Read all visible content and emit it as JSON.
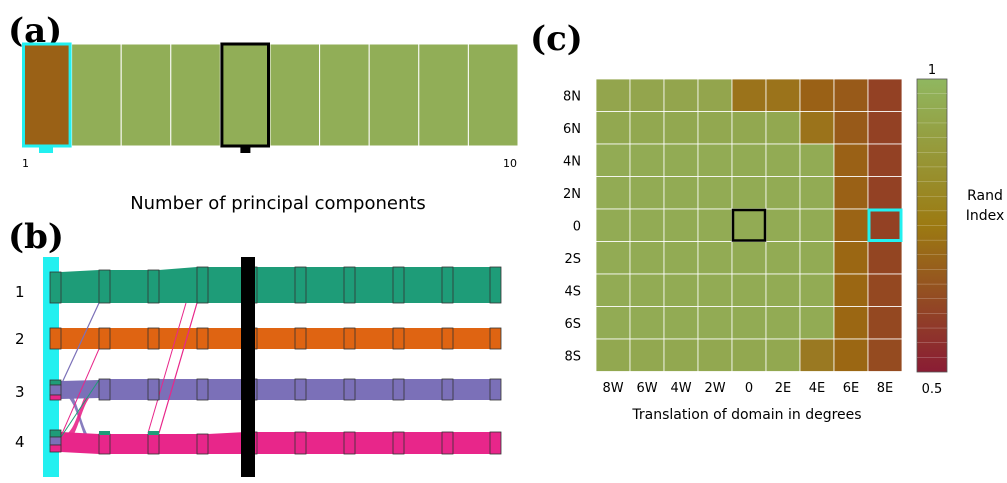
{
  "colors": {
    "cell_high": "#8fb55f",
    "cyan": "#22f0f0",
    "black": "#000000",
    "cluster_1": "#1e9c78",
    "cluster_2": "#df6412",
    "cluster_3": "#7b70b8",
    "cluster_4": "#e8268a",
    "rand_low": "#8a1c34",
    "rand_mid": "#9c6a12",
    "rand_high": "#90b760"
  },
  "chart_data": [
    {
      "panel": "a",
      "type": "heatmap",
      "panel_label": "(a)",
      "xlabel": "Number of principal components",
      "tick_labels": [
        "1",
        "10"
      ],
      "x": [
        1,
        2,
        3,
        4,
        5,
        6,
        7,
        8,
        9,
        10
      ],
      "values": [
        0.72,
        0.97,
        0.97,
        0.97,
        0.97,
        0.97,
        0.97,
        0.97,
        0.97,
        0.97
      ],
      "highlight_cyan": 1,
      "highlight_black": 5
    },
    {
      "panel": "b",
      "type": "alluvial",
      "panel_label": "(b)",
      "cluster_labels": [
        "1",
        "2",
        "3",
        "4"
      ],
      "columns": 10,
      "highlight_cyan_column": 1,
      "highlight_black_column": 5
    },
    {
      "panel": "c",
      "type": "heatmap",
      "panel_label": "(c)",
      "xlabel": "Translation of domain in degrees",
      "x_ticks": [
        "8W",
        "6W",
        "4W",
        "2W",
        "0",
        "2E",
        "4E",
        "6E",
        "8E"
      ],
      "y_ticks": [
        "8N",
        "6N",
        "4N",
        "2N",
        "0",
        "2S",
        "4S",
        "6S",
        "8S"
      ],
      "colorbar_label": [
        "Rand",
        "Index"
      ],
      "colorbar_ticks": [
        "1",
        "0.5"
      ],
      "colorbar_range": [
        0.5,
        1
      ],
      "values": [
        [
          0.94,
          0.94,
          0.94,
          0.94,
          0.78,
          0.78,
          0.72,
          0.7,
          0.62
        ],
        [
          0.95,
          0.95,
          0.95,
          0.95,
          0.95,
          0.95,
          0.78,
          0.7,
          0.62
        ],
        [
          0.96,
          0.96,
          0.96,
          0.96,
          0.96,
          0.96,
          0.96,
          0.72,
          0.62
        ],
        [
          0.96,
          0.96,
          0.96,
          0.96,
          0.96,
          0.96,
          0.96,
          0.72,
          0.62
        ],
        [
          0.96,
          0.96,
          0.96,
          0.96,
          0.96,
          0.96,
          0.96,
          0.73,
          0.62
        ],
        [
          0.96,
          0.96,
          0.96,
          0.96,
          0.96,
          0.96,
          0.96,
          0.74,
          0.63
        ],
        [
          0.96,
          0.96,
          0.96,
          0.96,
          0.96,
          0.96,
          0.96,
          0.74,
          0.64
        ],
        [
          0.96,
          0.96,
          0.96,
          0.96,
          0.96,
          0.96,
          0.96,
          0.74,
          0.64
        ],
        [
          0.95,
          0.95,
          0.95,
          0.95,
          0.95,
          0.95,
          0.8,
          0.74,
          0.65
        ]
      ],
      "highlight_black": [
        "0",
        "0"
      ],
      "highlight_cyan": [
        "8E",
        "0"
      ]
    }
  ]
}
